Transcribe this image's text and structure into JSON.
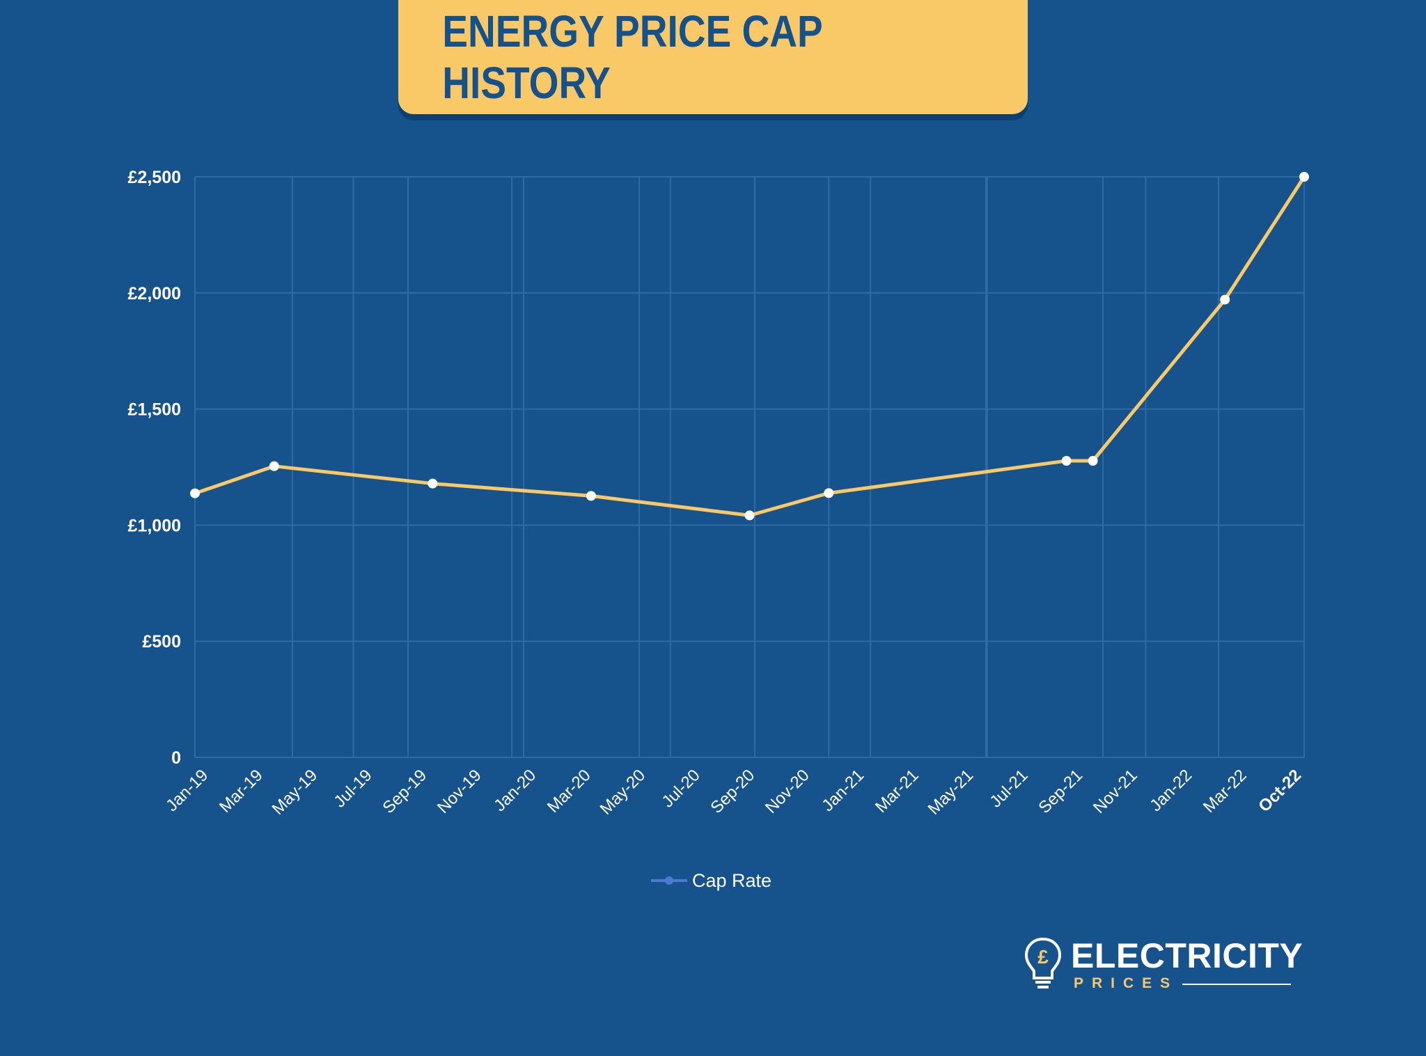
{
  "title": "ENERGY PRICE CAP HISTORY",
  "colors": {
    "background": "#16528b",
    "banner": "#f9c968",
    "line": "#f9c968",
    "grid": "#2e6aa3",
    "legend_marker": "#4a7bd0"
  },
  "chart_data": {
    "type": "line",
    "title": "ENERGY PRICE CAP HISTORY",
    "xlabel": "",
    "ylabel": "",
    "x_tick_labels": [
      "Jan-19",
      "Mar-19",
      "May-19",
      "Jul-19",
      "Sep-19",
      "Nov-19",
      "Jan-20",
      "Mar-20",
      "May-20",
      "Jul-20",
      "Sep-20",
      "Nov-20",
      "Jan-21",
      "Mar-21",
      "May-21",
      "Jul-21",
      "Sep-21",
      "Nov-21",
      "Jan-22",
      "Mar-22",
      "Oct-22"
    ],
    "y_tick_labels": [
      "0",
      "£500",
      "£1,000",
      "£1,500",
      "£2,000",
      "£2,500"
    ],
    "y_ticks": [
      0,
      500,
      1000,
      1500,
      2000,
      2500
    ],
    "ylim": [
      0,
      2500
    ],
    "grid": true,
    "legend_position": "bottom",
    "series": [
      {
        "name": "Cap Rate",
        "points": [
          {
            "date": "2019-01",
            "value": 1137
          },
          {
            "date": "2019-04",
            "value": 1254
          },
          {
            "date": "2019-10",
            "value": 1179
          },
          {
            "date": "2020-04",
            "value": 1126
          },
          {
            "date": "2020-10",
            "value": 1042
          },
          {
            "date": "2021-01",
            "value": 1138
          },
          {
            "date": "2021-10",
            "value": 1277
          },
          {
            "date": "2021-11",
            "value": 1277
          },
          {
            "date": "2022-04",
            "value": 1971
          },
          {
            "date": "2022-07",
            "value": 2500
          }
        ]
      }
    ]
  },
  "legend": {
    "label": "Cap Rate"
  },
  "logo": {
    "word": "ELECTRICITY",
    "sub": "PRICES",
    "symbol": "£"
  }
}
